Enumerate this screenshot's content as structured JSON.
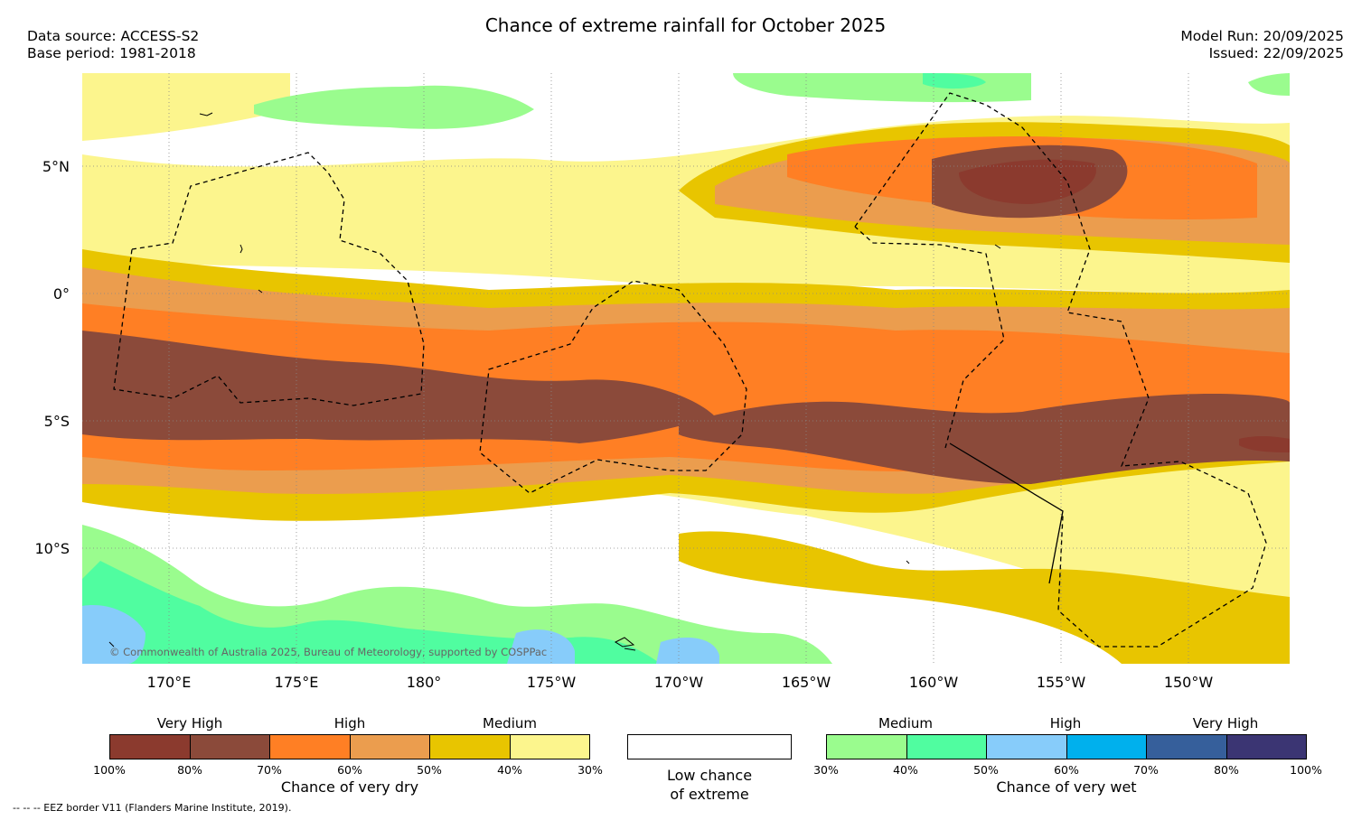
{
  "header": {
    "title": "Chance of extreme rainfall for October 2025",
    "data_source": "Data source: ACCESS-S2",
    "base_period": "Base period: 1981-2018",
    "model_run": "Model Run: 20/09/2025",
    "issued": "Issued: 22/09/2025"
  },
  "map": {
    "lat_labels": [
      "5°N",
      "0°",
      "5°S",
      "10°S"
    ],
    "lon_labels": [
      "170°E",
      "175°E",
      "180°",
      "175°W",
      "170°W",
      "165°W",
      "160°W",
      "155°W",
      "150°W"
    ],
    "credit": "© Commonwealth of Australia 2025, Bureau of Meteorology, supported by COSPPac"
  },
  "legend": {
    "dry": {
      "headers": [
        "Very High",
        "High",
        "Medium"
      ],
      "ticks": [
        "100%",
        "80%",
        "70%",
        "60%",
        "50%",
        "40%",
        "30%"
      ],
      "colors": [
        "#8b3a2e",
        "#8b4a3a",
        "#ff7f24",
        "#eb9d4e",
        "#e8c500",
        "#fcf58d"
      ],
      "title": "Chance of very dry"
    },
    "neutral": {
      "line1": "Low chance",
      "line2": "of extreme"
    },
    "wet": {
      "headers": [
        "Medium",
        "High",
        "Very High"
      ],
      "ticks": [
        "30%",
        "40%",
        "50%",
        "60%",
        "70%",
        "80%",
        "100%"
      ],
      "colors": [
        "#9afc8e",
        "#50fda0",
        "#87ccfa",
        "#00b0ed",
        "#365f9b",
        "#3b3573"
      ],
      "title": "Chance of very wet"
    }
  },
  "footer": {
    "eez_note": "--  --  -- EEZ border V11 (Flanders Marine Institute, 2019)."
  }
}
